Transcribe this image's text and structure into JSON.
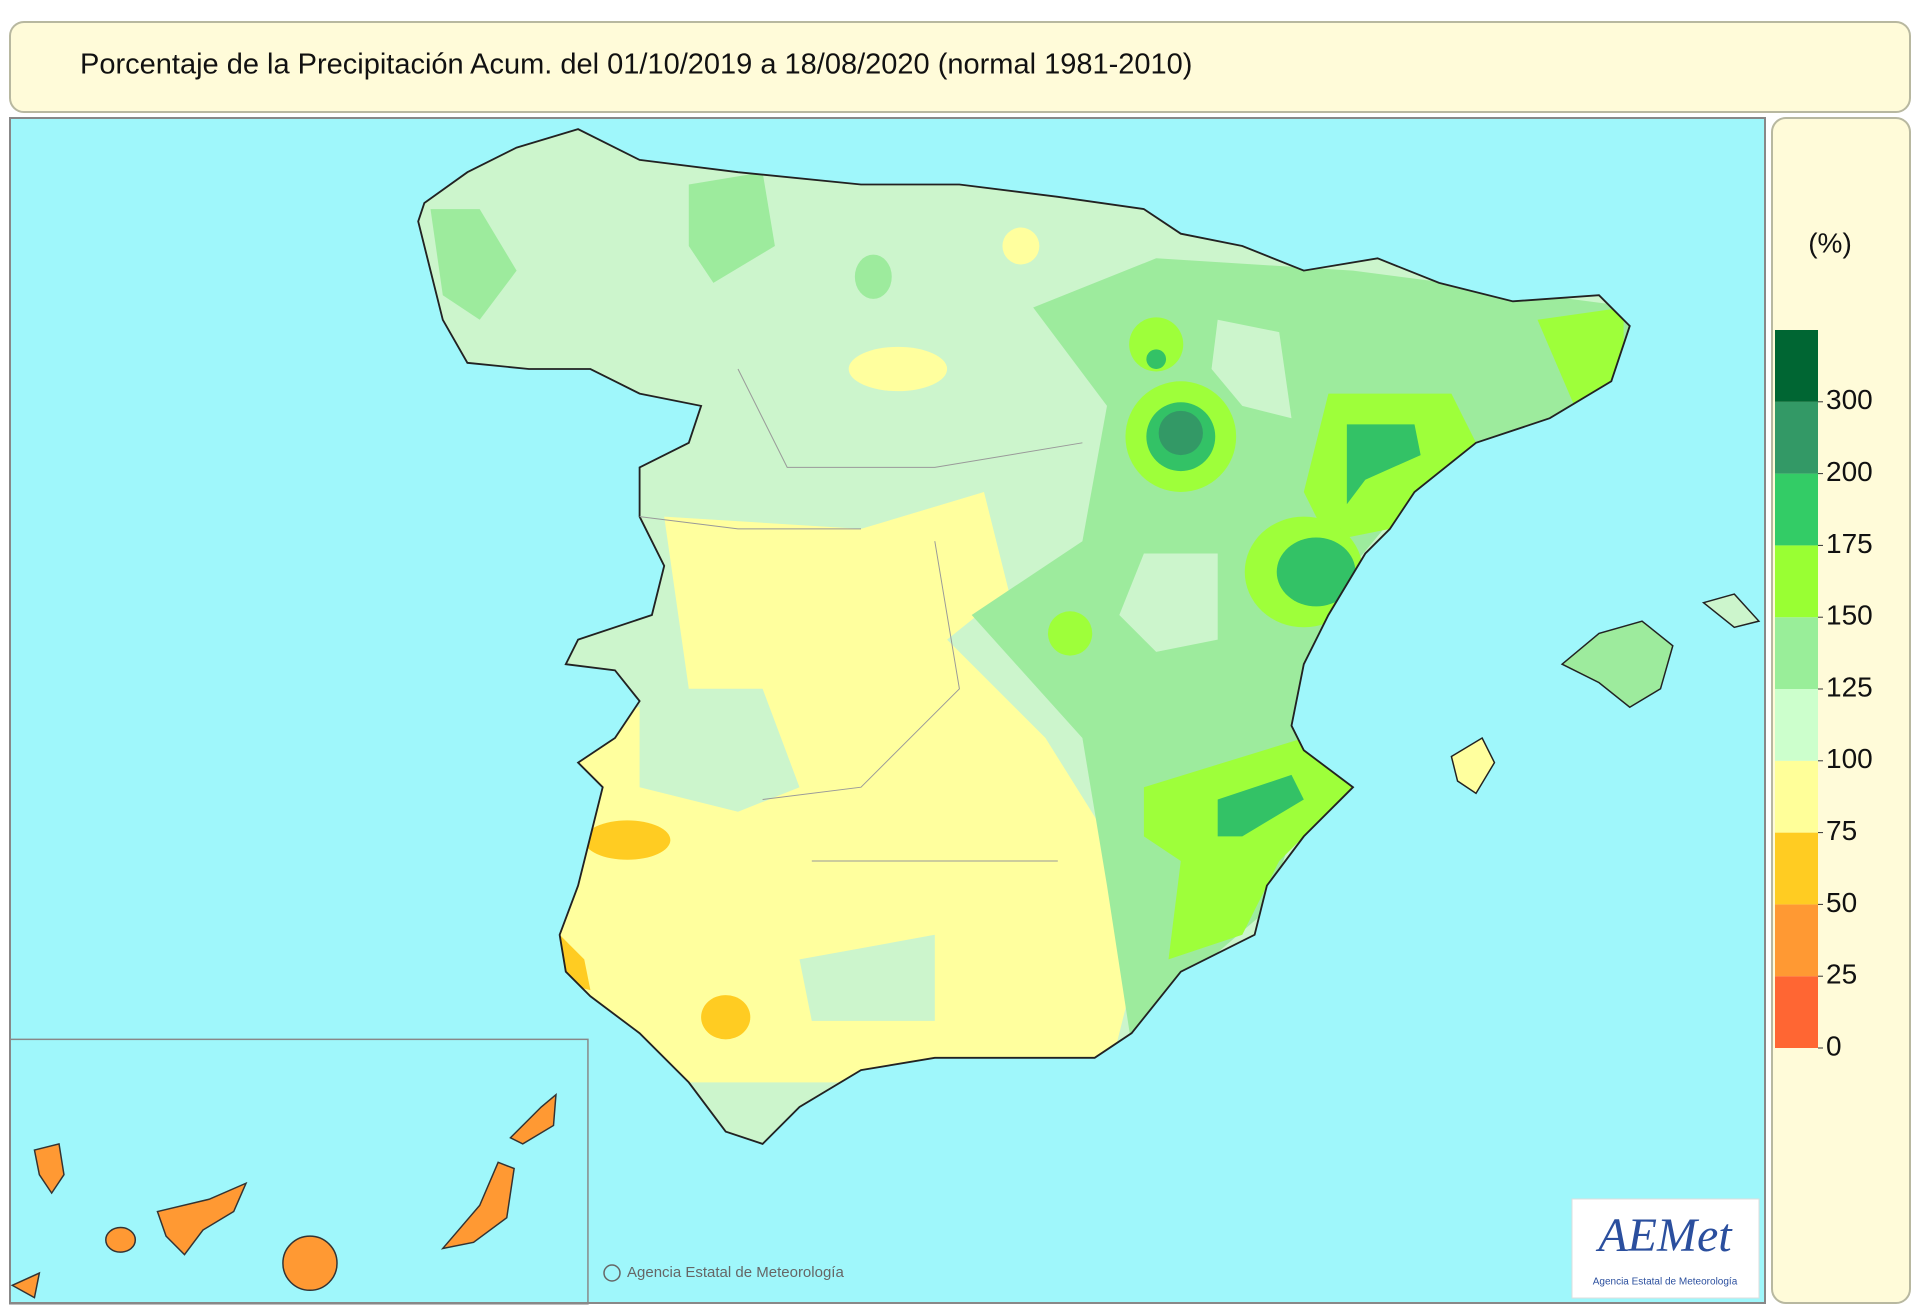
{
  "title": "Porcentaje de la Precipitación Acum. del 01/10/2019 a  18/08/2020  (normal 1981-2010)",
  "legend": {
    "unit": "(%)",
    "ticks": [
      0,
      25,
      50,
      75,
      100,
      125,
      150,
      175,
      200,
      300
    ],
    "colors": [
      "#ff6633",
      "#ff9933",
      "#ffcc22",
      "#ffff99",
      "#ccffcc",
      "#99ee99",
      "#99ff33",
      "#33cc66",
      "#339966",
      "#006633"
    ]
  },
  "credit": "Agencia Estatal de Meteorología",
  "logo": {
    "name": "AEMet",
    "subtitle": "Agencia Estatal de Meteorología"
  }
}
